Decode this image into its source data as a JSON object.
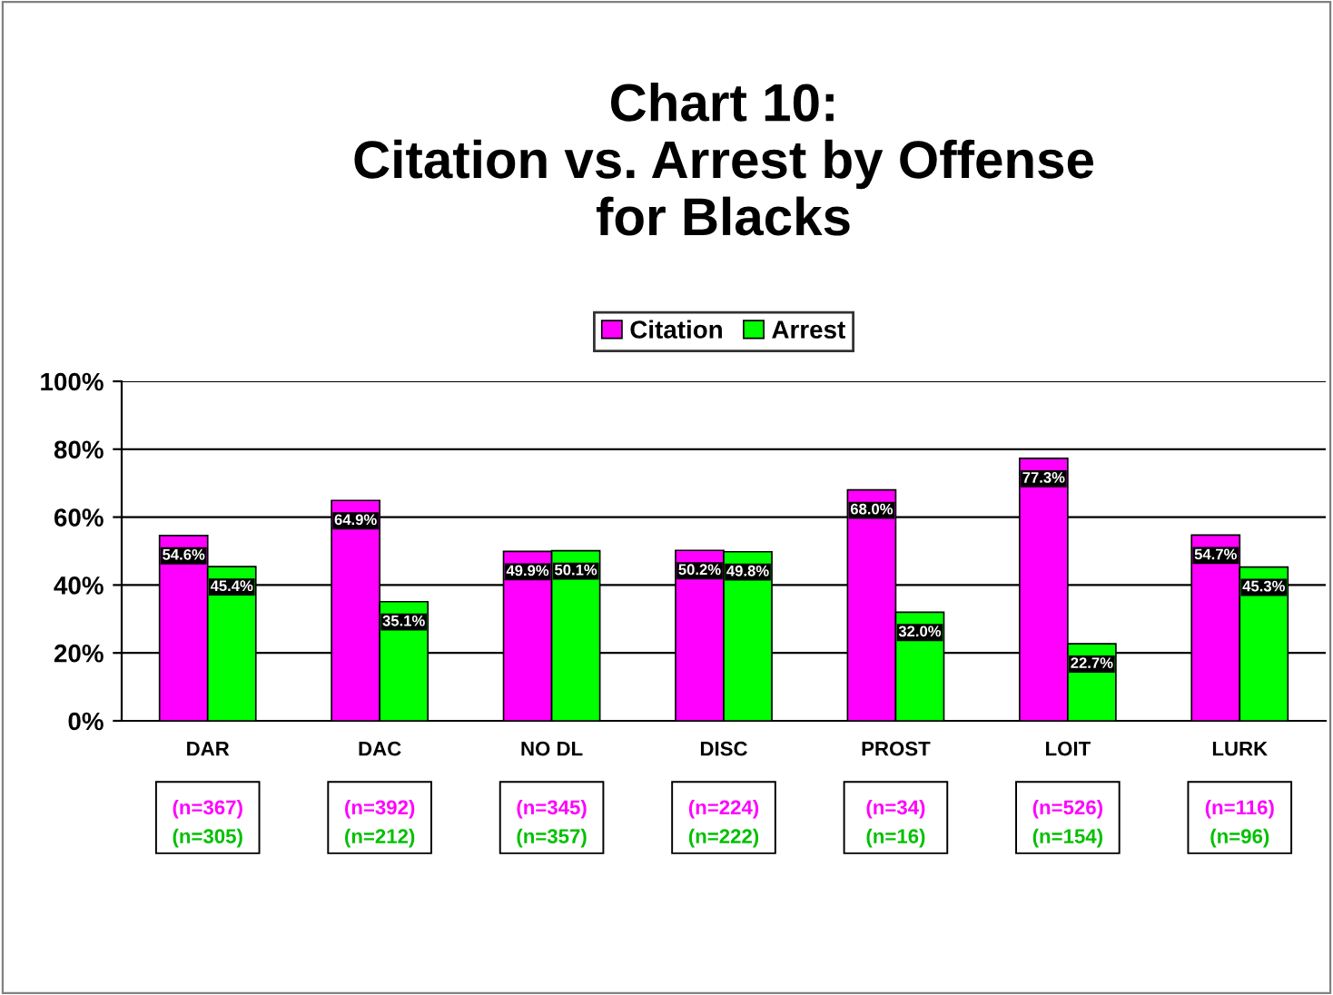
{
  "chart_data": {
    "type": "bar",
    "title": "Chart 10:\nCitation vs. Arrest by Offense\nfor Blacks",
    "categories": [
      "DAR",
      "DAC",
      "NO DL",
      "DISC",
      "PROST",
      "LOIT",
      "LURK"
    ],
    "series": [
      {
        "name": "Citation",
        "color": "#ff00ff",
        "values": [
          54.6,
          64.9,
          49.9,
          50.2,
          68.0,
          77.3,
          54.7
        ],
        "value_labels": [
          "54.6%",
          "64.9%",
          "49.9%",
          "50.2%",
          "68.0%",
          "77.3%",
          "54.7%"
        ]
      },
      {
        "name": "Arrest",
        "color": "#00ff00",
        "values": [
          45.4,
          35.1,
          50.1,
          49.8,
          32.0,
          22.7,
          45.3
        ],
        "value_labels": [
          "45.4%",
          "35.1%",
          "50.1%",
          "49.8%",
          "32.0%",
          "22.7%",
          "45.3%"
        ]
      }
    ],
    "ylim": [
      0,
      100
    ],
    "yticks": [
      {
        "value": 0,
        "label": "0%"
      },
      {
        "value": 20,
        "label": "20%"
      },
      {
        "value": 40,
        "label": "40%"
      },
      {
        "value": 60,
        "label": "60%"
      },
      {
        "value": 80,
        "label": "80%"
      },
      {
        "value": 100,
        "label": "100%"
      }
    ],
    "grid": "y",
    "legend": "top",
    "annotations": [
      "(n=367)",
      "(n=305)",
      "(n=392)",
      "(n=212)",
      "(n=345)",
      "(n=357)",
      "(n=224)",
      "(n=222)",
      "(n=34)",
      "(n=16)",
      "(n=526)",
      "(n=154)",
      "(n=116)",
      "(n=96)"
    ]
  }
}
